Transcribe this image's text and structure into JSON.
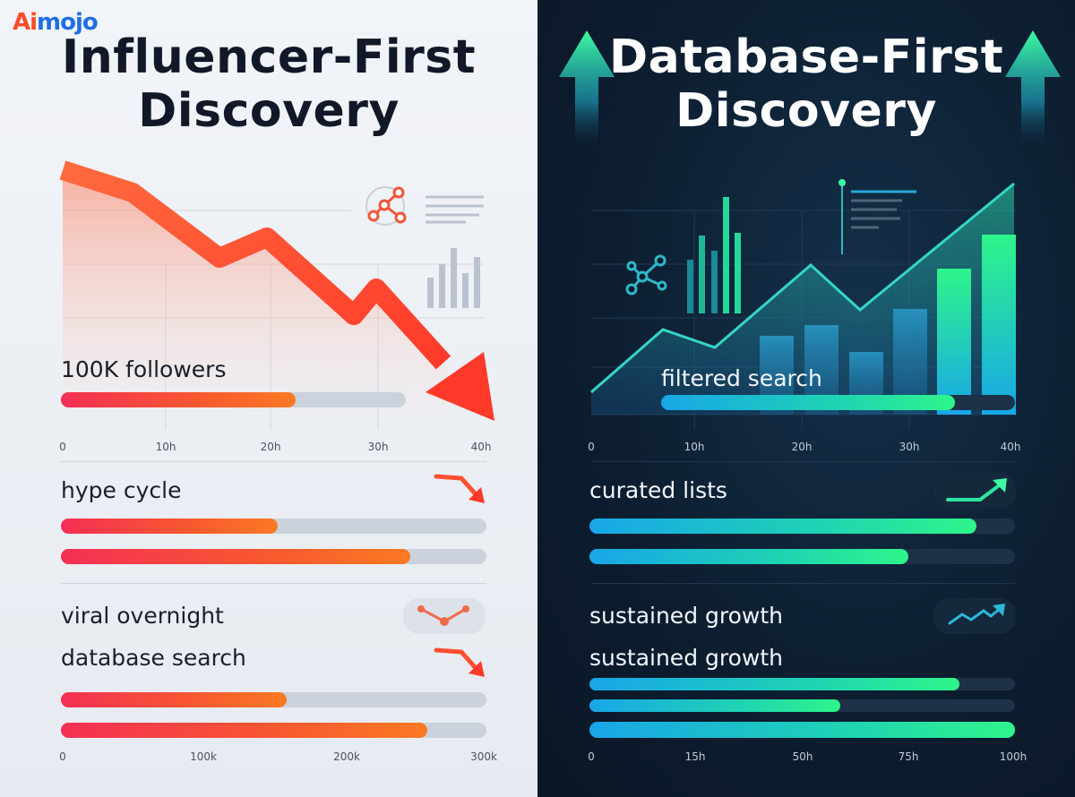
{
  "brand": {
    "logo_ai": "Ai",
    "logo_mojo": "mojo"
  },
  "left": {
    "title_line1": "Influencer-First",
    "title_line2": "Discovery",
    "accent": "#f8592f",
    "trend": "down",
    "icons": [
      "network-icon",
      "text-lines-icon",
      "bar-chart-icon",
      "down-arrow-icon"
    ],
    "labels": {
      "followers": "100K followers",
      "hype": "hype cycle",
      "viral": "viral overnight",
      "database": "database search"
    },
    "bars": {
      "followers": 0.68,
      "hype_1": 0.51,
      "hype_2": 0.82,
      "database_1": 0.53,
      "database_2": 0.86
    },
    "axis_top": [
      "0",
      "10h",
      "20h",
      "30h",
      "40h"
    ],
    "axis_bottom": [
      "0",
      "100k",
      "200k",
      "300k"
    ]
  },
  "right": {
    "title_line1": "Database-First",
    "title_line2": "Discovery",
    "accent": "#2ef58a",
    "trend": "up",
    "icons": [
      "up-arrow-icon",
      "network-icon",
      "text-lines-icon",
      "trend-up-icon"
    ],
    "labels": {
      "filtered": "filtered search",
      "curated": "curated lists",
      "sustained_1": "sustained growth",
      "sustained_2": "sustained growth"
    },
    "bars": {
      "filtered": 0.83,
      "curated_1": 0.91,
      "curated_2": 0.75,
      "sustained_1": 0.87,
      "sustained_2": 0.59,
      "sustained_3": 1.0
    },
    "axis_top": [
      "0",
      "10h",
      "20h",
      "30h",
      "40h"
    ],
    "axis_bottom": [
      "0",
      "15h",
      "50h",
      "75h",
      "100h"
    ]
  }
}
